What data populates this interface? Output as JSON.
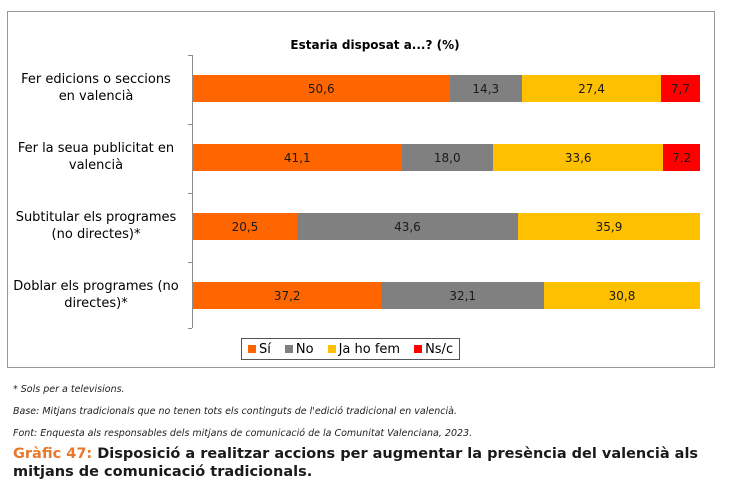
{
  "chart_data": {
    "type": "bar",
    "orientation": "horizontal",
    "stacked": true,
    "title": "Estaria disposat a...? (%)",
    "xlabel": "",
    "ylabel": "",
    "xlim": [
      0,
      100
    ],
    "grid": false,
    "legend_position": "bottom",
    "categories": [
      "Fer edicions o seccions en valencià",
      "Fer la seua publicitat en valencià",
      "Subtitular els programes (no directes)*",
      "Doblar els programes (no directes)*"
    ],
    "category_lines": [
      [
        "Fer edicions o seccions",
        "en valencià"
      ],
      [
        "Fer la seua publicitat en",
        "valencià"
      ],
      [
        "Subtitular els programes",
        "(no directes)*"
      ],
      [
        "Doblar els programes (no",
        "directes)*"
      ]
    ],
    "series": [
      {
        "name": "Sí",
        "color": "#ff6600",
        "values": [
          50.6,
          41.1,
          20.5,
          37.2
        ],
        "labels": [
          "50,6",
          "41,1",
          "20,5",
          "37,2"
        ]
      },
      {
        "name": "No",
        "color": "#808080",
        "values": [
          14.3,
          18.0,
          43.6,
          32.1
        ],
        "labels": [
          "14,3",
          "18,0",
          "43,6",
          "32,1"
        ]
      },
      {
        "name": "Ja ho fem",
        "color": "#ffc000",
        "values": [
          27.4,
          33.6,
          35.9,
          30.8
        ],
        "labels": [
          "27,4",
          "33,6",
          "35,9",
          "30,8"
        ]
      },
      {
        "name": "Ns/c",
        "color": "#ff0000",
        "values": [
          7.7,
          7.2,
          0,
          0
        ],
        "labels": [
          "7,7",
          "7,2",
          "",
          ""
        ]
      }
    ]
  },
  "notes": {
    "footnote": "* Sols per a televisions.",
    "base": "Base: Mitjans tradicionals que no tenen tots els continguts de l'edició tradicional en valencià.",
    "source": "Font: Enquesta als responsables dels mitjans de comunicació de la Comunitat Valenciana, 2023."
  },
  "caption": {
    "number": "Gràfic 47:",
    "text": " Disposició a realitzar accions per augmentar la presència del valencià als mitjans de comunicació tradicionals."
  }
}
